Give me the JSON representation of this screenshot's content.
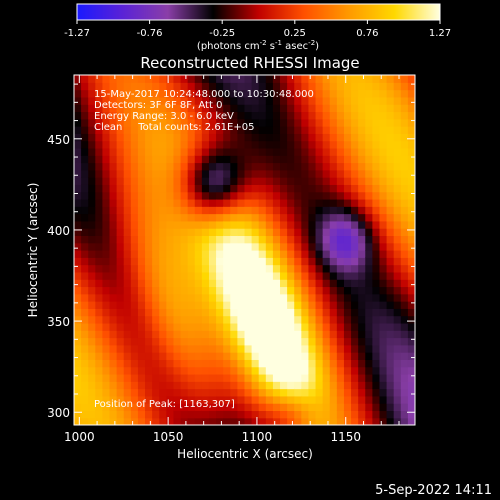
{
  "chart_data": {
    "type": "heatmap",
    "title": "Reconstructed RHESSI Image",
    "info_lines": [
      "15-May-2017 10:24:48.000 to 10:30:48.000",
      "Detectors: 3F 6F 8F, Att 0",
      "Energy Range: 3.0 - 6.0 keV",
      "Clean     Total counts: 2.61E+05"
    ],
    "annotation": "Position of Peak: [1163,307]",
    "xlabel": "Heliocentric X (arcsec)",
    "ylabel": "Heliocentric Y (arcsec)",
    "xlim": [
      997,
      1189
    ],
    "ylim": [
      293,
      485
    ],
    "xticks": [
      1000,
      1050,
      1100,
      1150
    ],
    "yticks": [
      300,
      350,
      400,
      450
    ],
    "colorbar": {
      "ticks": [
        "-1.27",
        "-0.76",
        "-0.25",
        "0.25",
        "0.76",
        "1.27"
      ],
      "range": [
        -1.27,
        1.27
      ],
      "label": "(photons cm-2 s-1 asec-2)",
      "colors": [
        "#1a1aff",
        "#5a22d6",
        "#8a3ea8",
        "#000000",
        "#c00000",
        "#ff5000",
        "#ff9a00",
        "#ffd800",
        "#ffffe0"
      ]
    },
    "grid": "off",
    "field_description": "Cleaned map with diagonal ridges of emission; negative lobes in blue/purple between ridges."
  },
  "footer": {
    "timestamp": "5-Sep-2022 14:11"
  }
}
